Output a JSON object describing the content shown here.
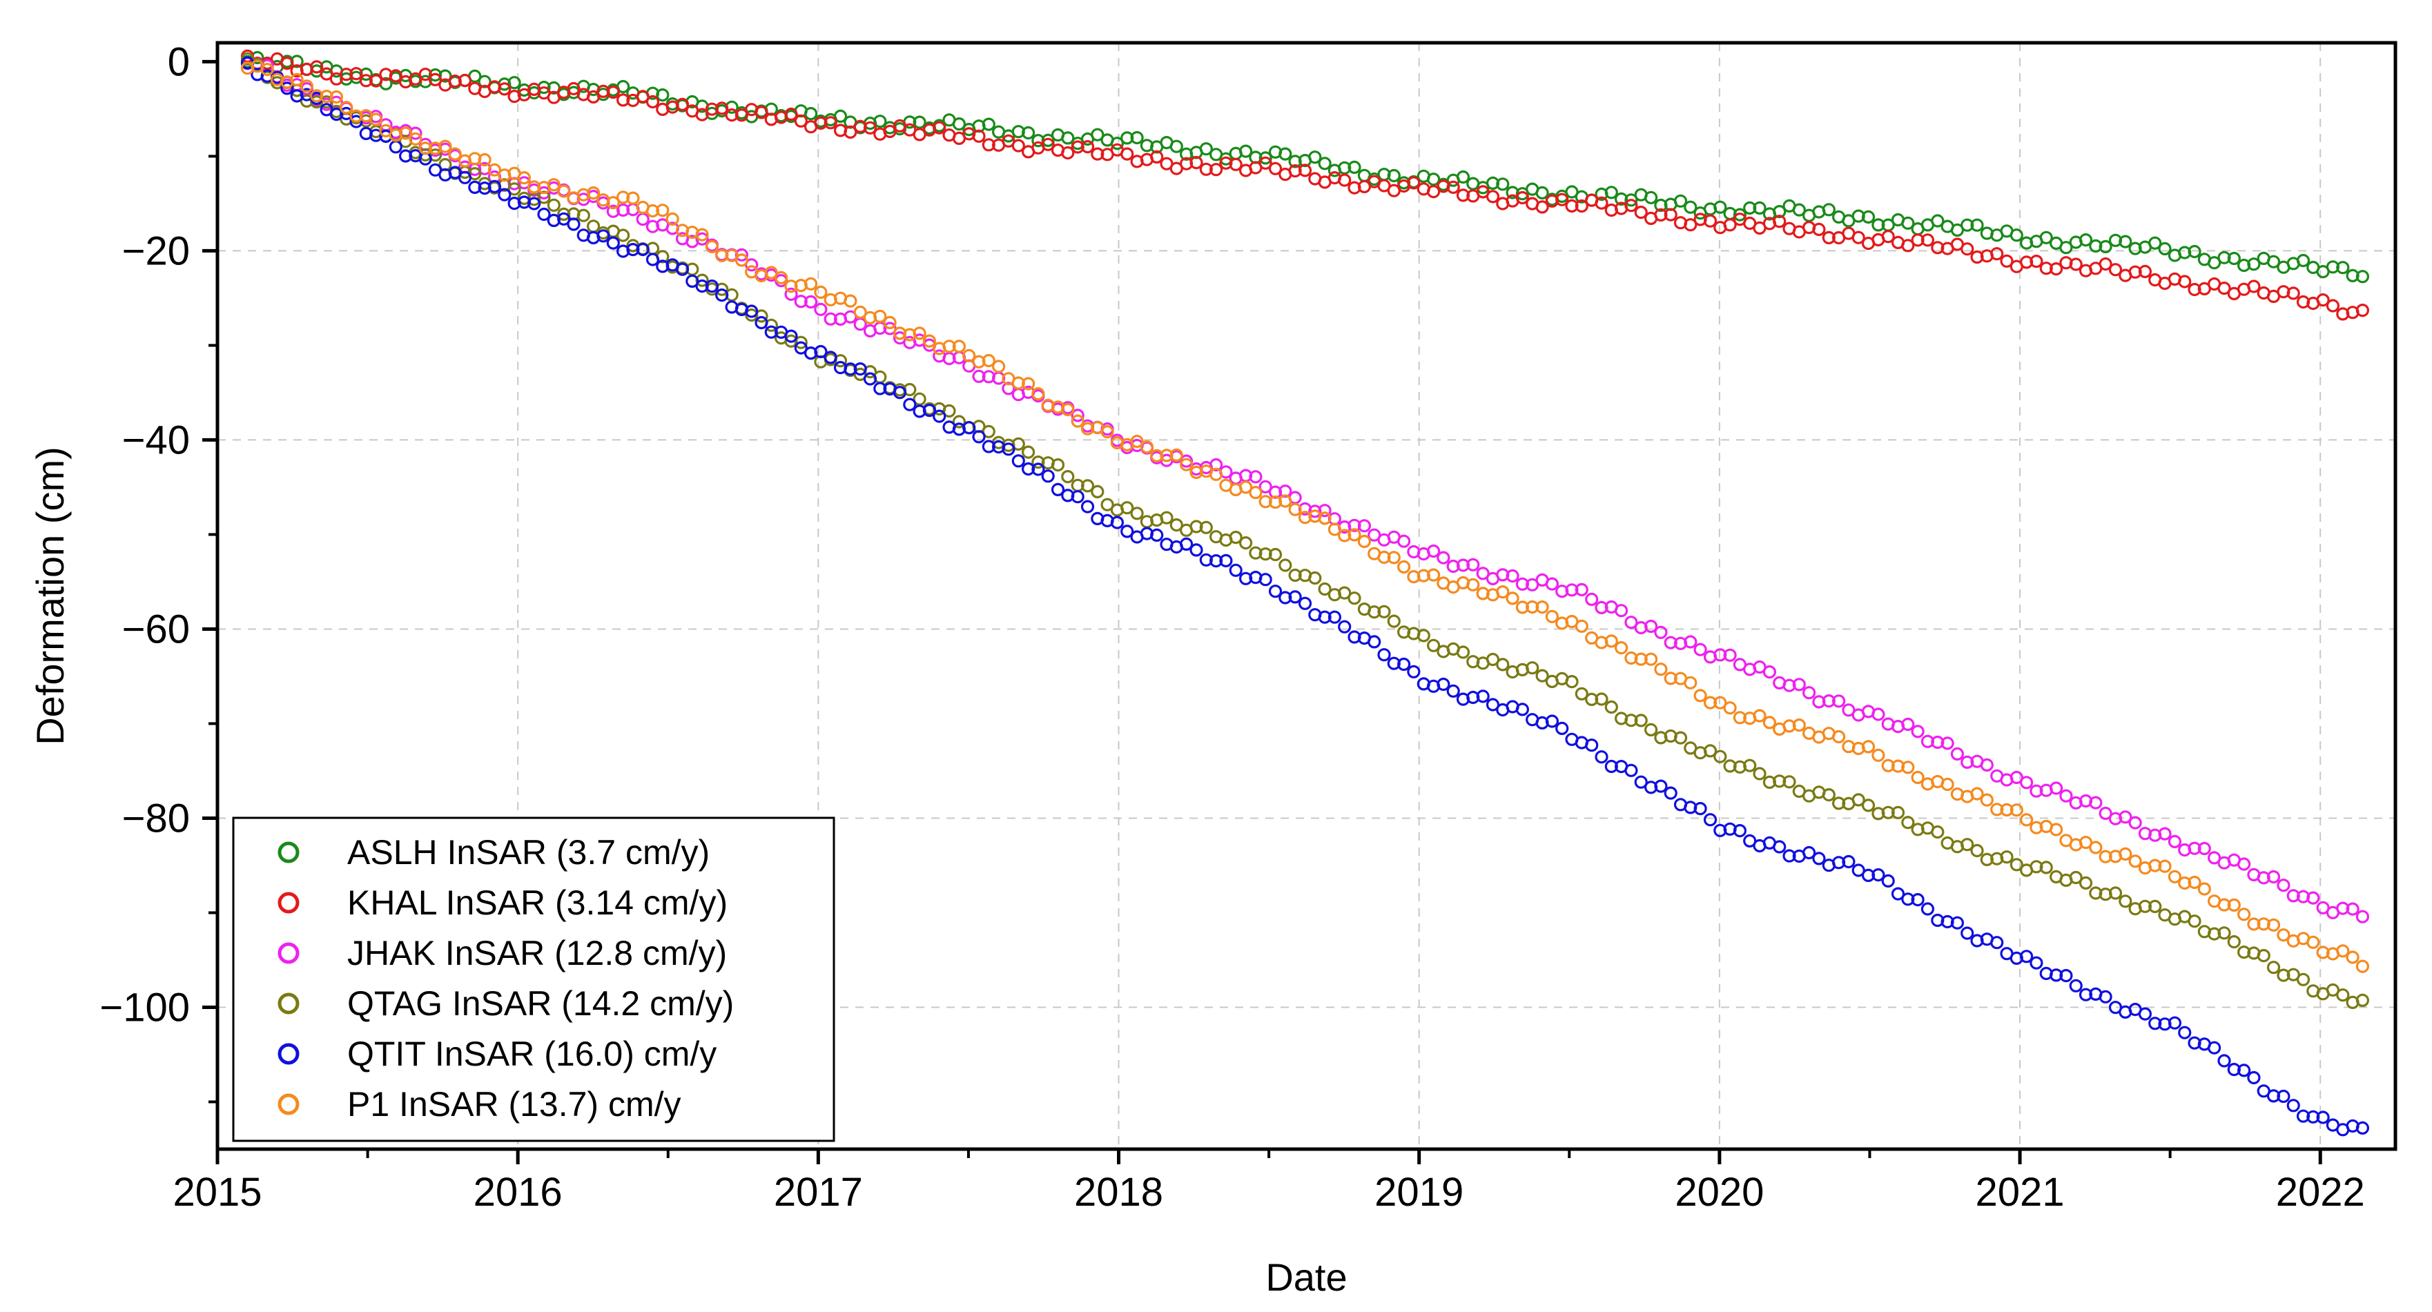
{
  "chart_data": {
    "type": "scatter",
    "title": "",
    "xlabel": "Date",
    "ylabel": "Deformation (cm)",
    "xlim": [
      2015.0,
      2022.25
    ],
    "ylim": [
      -115,
      2
    ],
    "x_ticks": [
      2015,
      2016,
      2017,
      2018,
      2019,
      2020,
      2021,
      2022
    ],
    "x_tick_labels": [
      "2015",
      "2016",
      "2017",
      "2018",
      "2019",
      "2020",
      "2021",
      "2022"
    ],
    "y_ticks": [
      0,
      -20,
      -40,
      -60,
      -80,
      -100
    ],
    "y_tick_labels": [
      "0",
      "−20",
      "−40",
      "−60",
      "−80",
      "−100"
    ],
    "grid": true,
    "legend_position": "bottom-left",
    "series": [
      {
        "name": "ASLH InSAR (3.7 cm/y)",
        "color": "#1a8a1a",
        "x": [
          2015.1,
          2015.5,
          2016.0,
          2016.4,
          2016.8,
          2017.0,
          2017.5,
          2018.0,
          2018.5,
          2019.0,
          2019.5,
          2020.0,
          2020.5,
          2021.0,
          2021.5,
          2022.0,
          2022.15
        ],
        "values": [
          0.0,
          -1.5,
          -2.5,
          -3.5,
          -5.5,
          -6.0,
          -7.0,
          -8.5,
          -10.0,
          -12.5,
          -14.0,
          -15.5,
          -16.5,
          -18.5,
          -20.0,
          -22.0,
          -22.3
        ]
      },
      {
        "name": "KHAL InSAR (3.14 cm/y)",
        "color": "#e31a1c",
        "x": [
          2015.1,
          2015.5,
          2016.0,
          2016.4,
          2016.8,
          2017.0,
          2017.5,
          2018.0,
          2018.5,
          2019.0,
          2019.5,
          2020.0,
          2020.5,
          2021.0,
          2021.5,
          2022.0,
          2022.15
        ],
        "values": [
          0.0,
          -1.5,
          -3.0,
          -4.0,
          -5.8,
          -6.5,
          -8.0,
          -10.0,
          -11.5,
          -13.5,
          -15.0,
          -17.0,
          -18.5,
          -21.0,
          -23.0,
          -25.5,
          -26.5
        ]
      },
      {
        "name": "JHAK InSAR (12.8 cm/y)",
        "color": "#ee22ee",
        "x": [
          2015.1,
          2015.5,
          2016.0,
          2016.4,
          2016.8,
          2017.0,
          2017.5,
          2018.0,
          2018.5,
          2019.0,
          2019.5,
          2020.0,
          2020.5,
          2021.0,
          2021.5,
          2022.0,
          2022.15
        ],
        "values": [
          0.0,
          -6.0,
          -13.0,
          -16.0,
          -22.0,
          -26.0,
          -32.0,
          -40.0,
          -45.0,
          -52.0,
          -56.0,
          -63.0,
          -69.0,
          -76.0,
          -82.0,
          -89.0,
          -90.0
        ]
      },
      {
        "name": "QTAG InSAR (14.2 cm/y)",
        "color": "#7a7a14",
        "x": [
          2015.1,
          2015.5,
          2016.0,
          2016.4,
          2016.8,
          2017.0,
          2017.5,
          2018.0,
          2018.5,
          2019.0,
          2019.5,
          2020.0,
          2020.5,
          2021.0,
          2021.5,
          2022.0,
          2022.15
        ],
        "values": [
          0.0,
          -7.0,
          -14.0,
          -19.0,
          -27.0,
          -31.0,
          -38.0,
          -47.0,
          -52.0,
          -61.0,
          -66.0,
          -74.0,
          -79.0,
          -85.0,
          -90.0,
          -98.0,
          -99.5
        ]
      },
      {
        "name": "QTIT InSAR (16.0) cm/y",
        "color": "#1010e0",
        "x": [
          2015.1,
          2015.5,
          2016.0,
          2016.4,
          2016.8,
          2017.0,
          2017.5,
          2018.0,
          2018.5,
          2019.0,
          2019.5,
          2020.0,
          2020.5,
          2021.0,
          2021.5,
          2022.0,
          2022.15
        ],
        "values": [
          0.0,
          -7.5,
          -15.0,
          -20.0,
          -27.0,
          -31.0,
          -39.0,
          -49.0,
          -55.0,
          -65.0,
          -71.0,
          -81.0,
          -86.0,
          -95.0,
          -102.0,
          -112.0,
          -113.5
        ]
      },
      {
        "name": "P1 InSAR (13.7) cm/y",
        "color": "#f58a1f",
        "x": [
          2015.1,
          2015.5,
          2016.0,
          2016.4,
          2016.8,
          2017.0,
          2017.5,
          2018.0,
          2018.5,
          2019.0,
          2019.5,
          2020.0,
          2020.5,
          2021.0,
          2021.5,
          2022.0,
          2022.15
        ],
        "values": [
          0.0,
          -6.0,
          -12.5,
          -15.0,
          -22.0,
          -24.5,
          -31.0,
          -40.0,
          -46.0,
          -54.0,
          -59.0,
          -68.0,
          -73.0,
          -80.0,
          -86.0,
          -94.0,
          -95.5
        ]
      }
    ]
  }
}
